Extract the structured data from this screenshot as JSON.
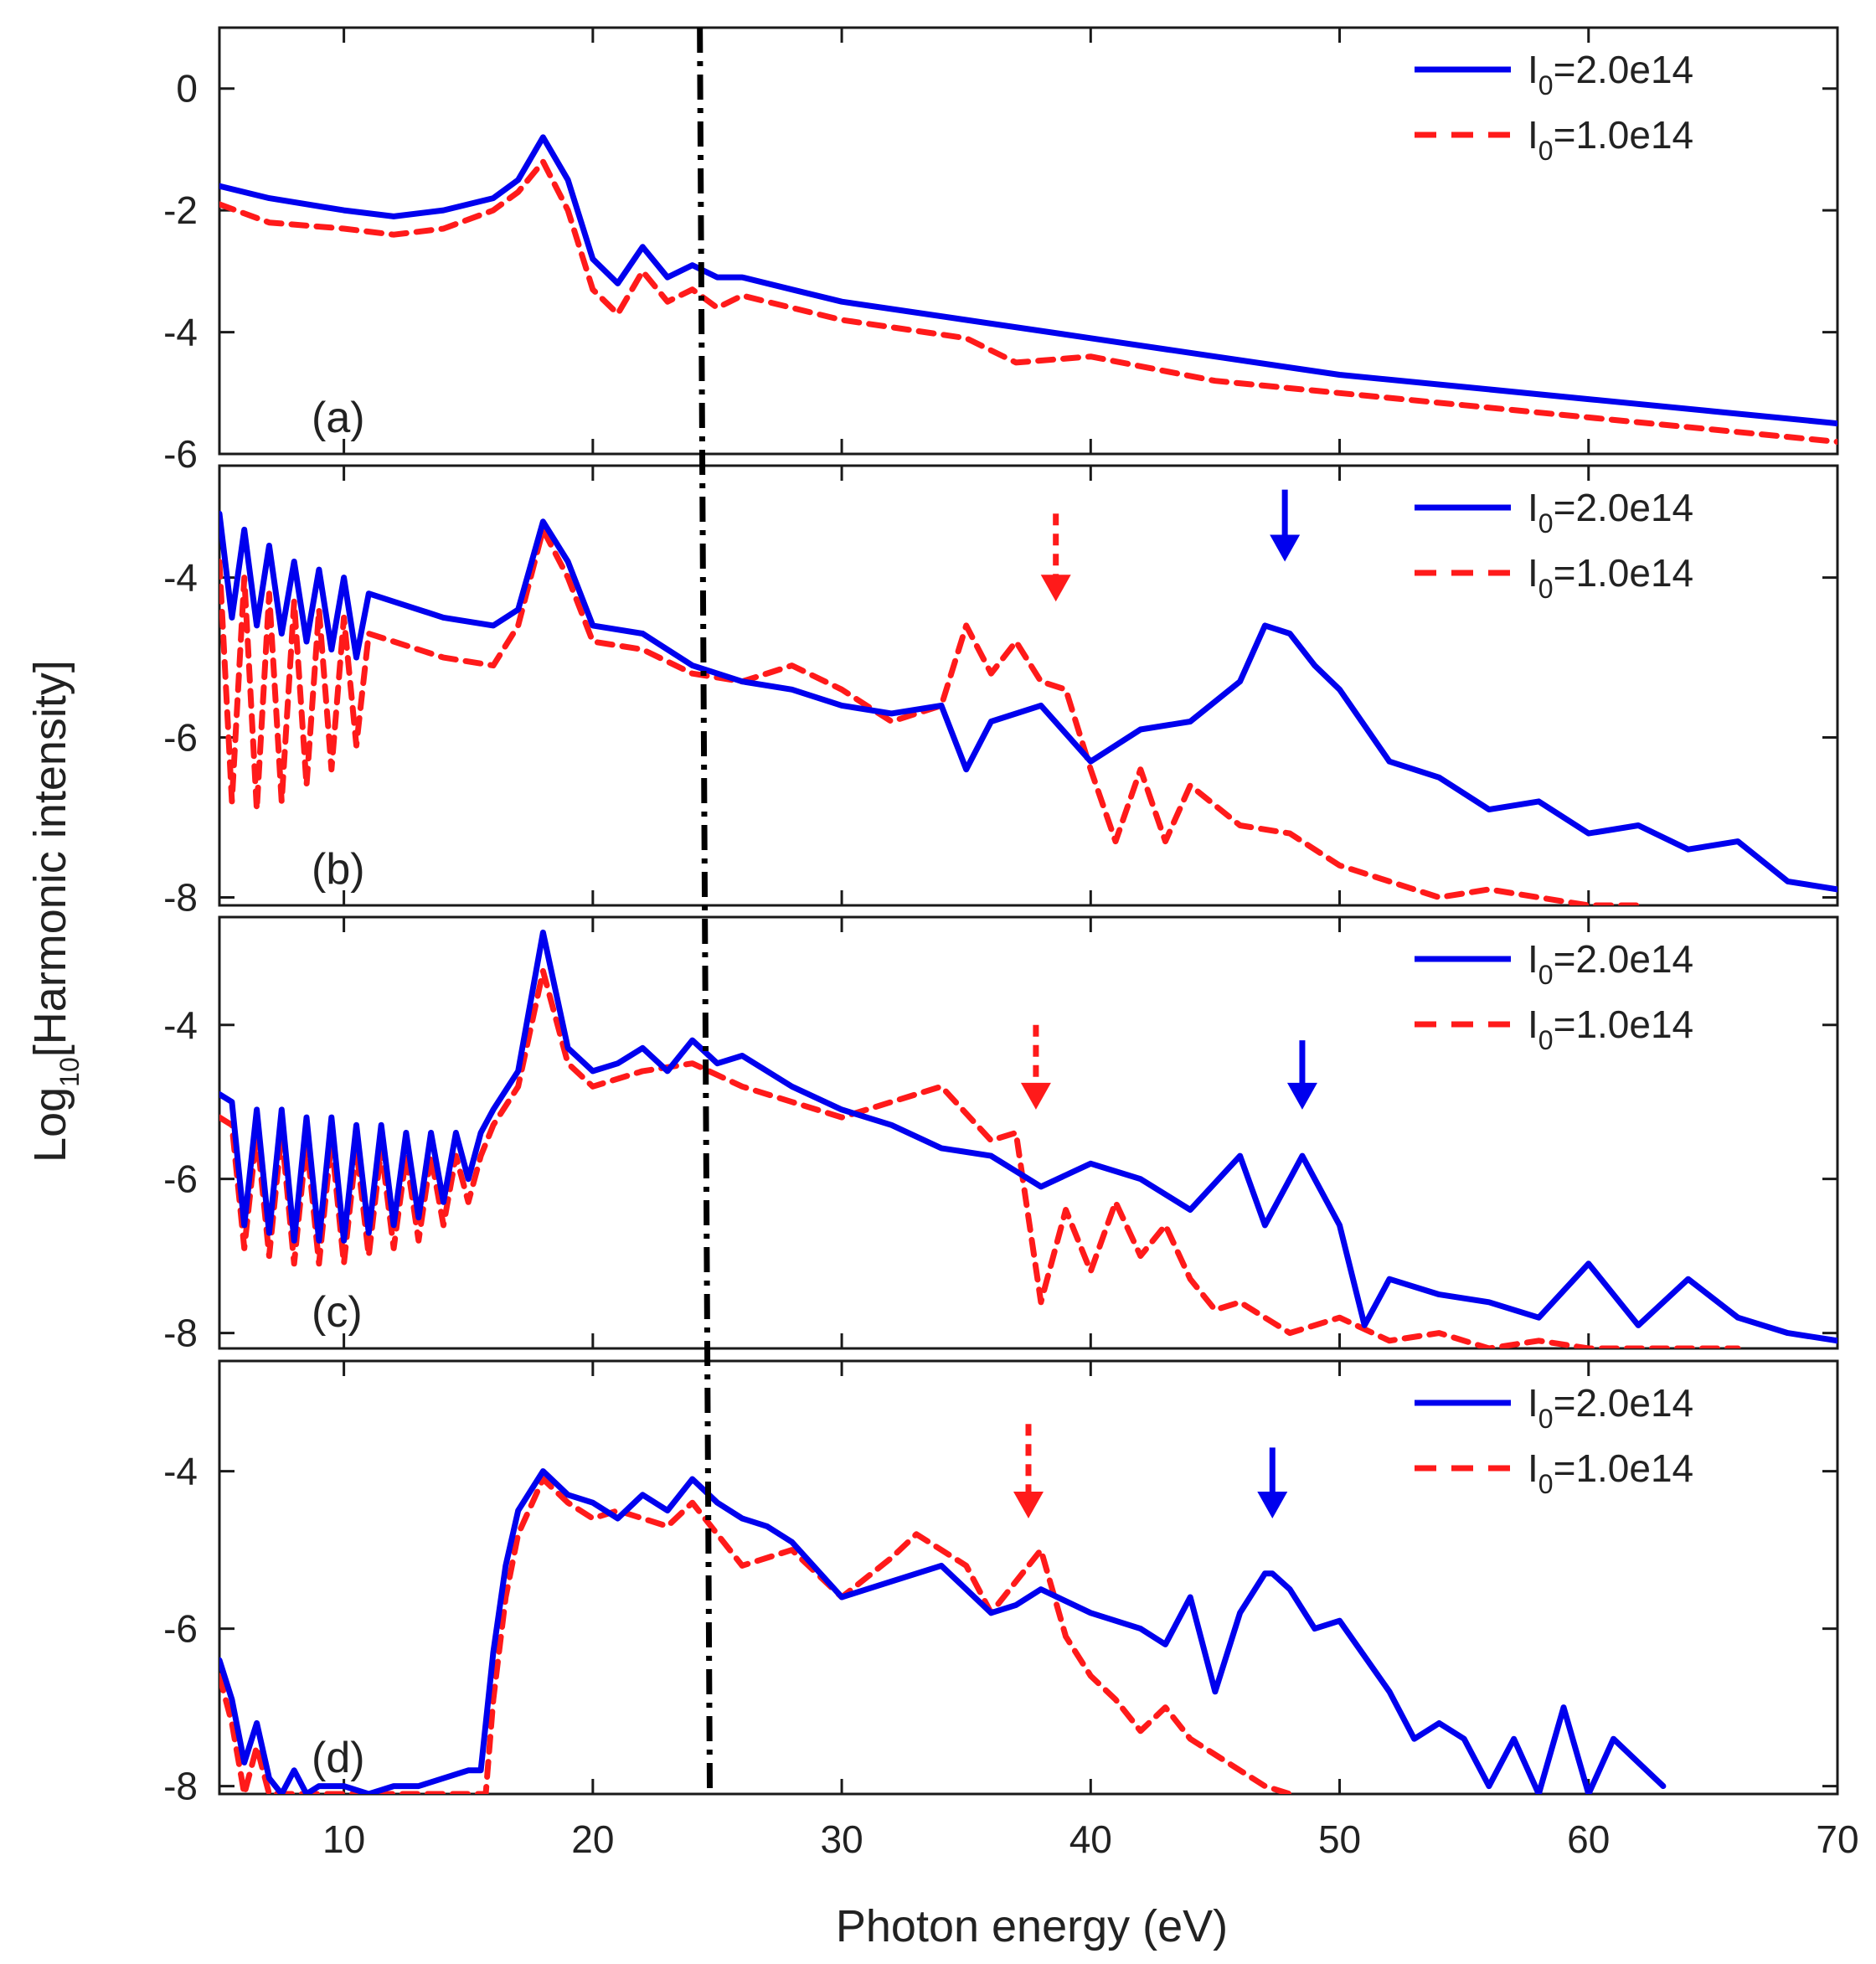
{
  "chart_data": {
    "type": "line",
    "xlabel": "Photon energy (eV)",
    "ylabel_prefix": "Log",
    "ylabel_subscript": "10",
    "ylabel_suffix": "[Harmonic intensity]",
    "xlim": [
      5,
      70
    ],
    "x_ticks": [
      "10",
      "20",
      "30",
      "40",
      "50",
      "60",
      "70"
    ],
    "x_tick_values": [
      10,
      20,
      30,
      40,
      50,
      60,
      70
    ],
    "colors": {
      "blue": "#0000ee",
      "red": "#ff1a1a",
      "vline": "#000000"
    },
    "vertical_line_x": [
      24.3,
      24.7
    ],
    "legend_entries": [
      {
        "name_main": "I",
        "name_sub": "0",
        "name_rest": "=2.0e14",
        "style": "solid",
        "color": "#0000ee"
      },
      {
        "name_main": "I",
        "name_sub": "0",
        "name_rest": "=1.0e14",
        "style": "dashed",
        "color": "#ff1a1a"
      }
    ],
    "panels": [
      {
        "label": "(a)",
        "ylim": [
          -6,
          1
        ],
        "y_ticks": [
          "0",
          "-2",
          "-4",
          "-6"
        ],
        "y_tick_values": [
          0,
          -2,
          -4,
          -6
        ],
        "arrows": [],
        "series": [
          {
            "name": "I0=2.0e14",
            "color": "#0000ee",
            "style": "solid",
            "x": [
              5,
              7,
              10,
              12,
              14,
              16,
              17,
              18,
              19,
              20,
              21,
              22,
              23,
              24,
              25,
              26,
              28,
              30,
              35,
              40,
              45,
              50,
              55,
              60,
              65,
              70
            ],
            "y": [
              -1.6,
              -1.8,
              -2.0,
              -2.1,
              -2.0,
              -1.8,
              -1.5,
              -0.8,
              -1.5,
              -2.8,
              -3.2,
              -2.6,
              -3.1,
              -2.9,
              -3.1,
              -3.1,
              -3.3,
              -3.5,
              -3.8,
              -4.1,
              -4.4,
              -4.7,
              -4.9,
              -5.1,
              -5.3,
              -5.5
            ]
          },
          {
            "name": "I0=1.0e14",
            "color": "#ff1a1a",
            "style": "dashed",
            "x": [
              5,
              7,
              10,
              12,
              14,
              16,
              17,
              18,
              19,
              20,
              21,
              22,
              23,
              24,
              25,
              26,
              28,
              30,
              35,
              37,
              40,
              45,
              50,
              55,
              60,
              65,
              70
            ],
            "y": [
              -1.9,
              -2.2,
              -2.3,
              -2.4,
              -2.3,
              -2.0,
              -1.7,
              -1.2,
              -2.0,
              -3.3,
              -3.7,
              -3.0,
              -3.5,
              -3.3,
              -3.6,
              -3.4,
              -3.6,
              -3.8,
              -4.1,
              -4.5,
              -4.4,
              -4.8,
              -5.0,
              -5.2,
              -5.4,
              -5.6,
              -5.8
            ]
          }
        ]
      },
      {
        "label": "(b)",
        "ylim": [
          -8.1,
          -2.6
        ],
        "y_ticks": [
          "-4",
          "-6",
          "-8"
        ],
        "y_tick_values": [
          -4,
          -6,
          -8
        ],
        "arrows": [
          {
            "x": 47.8,
            "y_top": -2.9,
            "y_bottom": -3.8,
            "color": "#0000ee",
            "style": "solid"
          },
          {
            "x": 38.6,
            "y_top": -3.2,
            "y_bottom": -4.3,
            "color": "#ff1a1a",
            "style": "dashed"
          }
        ],
        "series": [
          {
            "name": "I0=2.0e14",
            "color": "#0000ee",
            "style": "solid",
            "x": [
              5,
              5.5,
              6,
              6.5,
              7,
              7.5,
              8,
              8.5,
              9,
              9.5,
              10,
              10.5,
              11,
              12,
              14,
              16,
              17,
              18,
              19,
              20,
              22,
              24,
              26,
              28,
              30,
              32,
              34,
              35,
              36,
              38,
              40,
              42,
              44,
              46,
              47,
              48,
              49,
              50,
              52,
              54,
              56,
              58,
              60,
              62,
              64,
              66,
              68,
              70
            ],
            "y": [
              -3.2,
              -4.5,
              -3.4,
              -4.6,
              -3.6,
              -4.7,
              -3.8,
              -4.8,
              -3.9,
              -4.9,
              -4.0,
              -5.0,
              -4.2,
              -4.3,
              -4.5,
              -4.6,
              -4.4,
              -3.3,
              -3.8,
              -4.6,
              -4.7,
              -5.1,
              -5.3,
              -5.4,
              -5.6,
              -5.7,
              -5.6,
              -6.4,
              -5.8,
              -5.6,
              -6.3,
              -5.9,
              -5.8,
              -5.3,
              -4.6,
              -4.7,
              -5.1,
              -5.4,
              -6.3,
              -6.5,
              -6.9,
              -6.8,
              -7.2,
              -7.1,
              -7.4,
              -7.3,
              -7.8,
              -7.9
            ]
          },
          {
            "name": "I0=1.0e14",
            "color": "#ff1a1a",
            "style": "dashed",
            "x": [
              5,
              5.5,
              6,
              6.5,
              7,
              7.5,
              8,
              8.5,
              9,
              9.5,
              10,
              10.5,
              11,
              12,
              14,
              16,
              17,
              18,
              19,
              20,
              22,
              24,
              26,
              28,
              30,
              32,
              34,
              35,
              36,
              37,
              38,
              39,
              40,
              41,
              42,
              43,
              44,
              46,
              48,
              50,
              52,
              54,
              56,
              58,
              60,
              62
            ],
            "y": [
              -3.8,
              -6.8,
              -4.0,
              -6.9,
              -4.2,
              -6.8,
              -4.3,
              -6.6,
              -4.4,
              -6.4,
              -4.5,
              -6.1,
              -4.7,
              -4.8,
              -5.0,
              -5.1,
              -4.6,
              -3.4,
              -4.0,
              -4.8,
              -4.9,
              -5.2,
              -5.3,
              -5.1,
              -5.4,
              -5.8,
              -5.6,
              -4.6,
              -5.2,
              -4.8,
              -5.3,
              -5.4,
              -6.4,
              -7.3,
              -6.4,
              -7.3,
              -6.6,
              -7.1,
              -7.2,
              -7.6,
              -7.8,
              -8.0,
              -7.9,
              -8.0,
              -8.1,
              -8.1
            ]
          }
        ]
      },
      {
        "label": "(c)",
        "ylim": [
          -8.2,
          -2.6
        ],
        "y_ticks": [
          "-4",
          "-6",
          "-8"
        ],
        "y_tick_values": [
          -4,
          -6,
          -8
        ],
        "arrows": [
          {
            "x": 48.5,
            "y_top": -4.2,
            "y_bottom": -5.1,
            "color": "#0000ee",
            "style": "solid"
          },
          {
            "x": 37.8,
            "y_top": -4.0,
            "y_bottom": -5.1,
            "color": "#ff1a1a",
            "style": "dashed"
          }
        ],
        "series": [
          {
            "name": "I0=2.0e14",
            "color": "#0000ee",
            "style": "solid",
            "x": [
              5,
              5.5,
              6,
              6.5,
              7,
              7.5,
              8,
              8.5,
              9,
              9.5,
              10,
              10.5,
              11,
              11.5,
              12,
              12.5,
              13,
              13.5,
              14,
              14.5,
              15,
              15.5,
              16,
              17,
              18,
              19,
              20,
              21,
              22,
              23,
              24,
              25,
              26,
              28,
              30,
              32,
              34,
              36,
              38,
              40,
              42,
              44,
              46,
              47,
              48,
              48.5,
              49,
              50,
              51,
              52,
              54,
              56,
              58,
              60,
              62,
              64,
              66,
              68,
              70
            ],
            "y": [
              -4.9,
              -5.0,
              -6.6,
              -5.1,
              -6.7,
              -5.1,
              -6.8,
              -5.2,
              -6.8,
              -5.2,
              -6.8,
              -5.3,
              -6.7,
              -5.3,
              -6.6,
              -5.4,
              -6.5,
              -5.4,
              -6.3,
              -5.4,
              -6.0,
              -5.4,
              -5.1,
              -4.6,
              -2.8,
              -4.3,
              -4.6,
              -4.5,
              -4.3,
              -4.6,
              -4.2,
              -4.5,
              -4.4,
              -4.8,
              -5.1,
              -5.3,
              -5.6,
              -5.7,
              -6.1,
              -5.8,
              -6.0,
              -6.4,
              -5.7,
              -6.6,
              -6.0,
              -5.7,
              -6.0,
              -6.6,
              -7.9,
              -7.3,
              -7.5,
              -7.6,
              -7.8,
              -7.1,
              -7.9,
              -7.3,
              -7.8,
              -8.0,
              -8.1
            ]
          },
          {
            "name": "I0=1.0e14",
            "color": "#ff1a1a",
            "style": "dashed",
            "x": [
              5,
              5.5,
              6,
              6.5,
              7,
              7.5,
              8,
              8.5,
              9,
              9.5,
              10,
              10.5,
              11,
              11.5,
              12,
              12.5,
              13,
              13.5,
              14,
              14.5,
              15,
              15.5,
              16,
              17,
              18,
              19,
              20,
              22,
              24,
              26,
              28,
              30,
              32,
              34,
              36,
              37,
              38,
              39,
              40,
              41,
              42,
              43,
              44,
              45,
              46,
              48,
              50,
              52,
              54,
              56,
              58,
              60,
              62,
              64,
              66
            ],
            "y": [
              -5.2,
              -5.3,
              -6.9,
              -5.4,
              -7.0,
              -5.4,
              -7.1,
              -5.5,
              -7.1,
              -5.5,
              -7.1,
              -5.6,
              -7.0,
              -5.6,
              -6.9,
              -5.7,
              -6.8,
              -5.7,
              -6.6,
              -5.7,
              -6.3,
              -5.7,
              -5.3,
              -4.8,
              -3.3,
              -4.5,
              -4.8,
              -4.6,
              -4.5,
              -4.8,
              -5.0,
              -5.2,
              -5.0,
              -4.8,
              -5.5,
              -5.4,
              -7.6,
              -6.4,
              -7.2,
              -6.3,
              -7.0,
              -6.6,
              -7.3,
              -7.7,
              -7.6,
              -8.0,
              -7.8,
              -8.1,
              -8.0,
              -8.2,
              -8.1,
              -8.2,
              -8.2,
              -8.2,
              -8.2
            ]
          }
        ]
      },
      {
        "label": "(d)",
        "ylim": [
          -8.1,
          -2.6
        ],
        "y_ticks": [
          "-4",
          "-6",
          "-8"
        ],
        "y_tick_values": [
          -4,
          -6,
          -8
        ],
        "arrows": [
          {
            "x": 47.3,
            "y_top": -3.7,
            "y_bottom": -4.6,
            "color": "#0000ee",
            "style": "solid"
          },
          {
            "x": 37.5,
            "y_top": -3.4,
            "y_bottom": -4.6,
            "color": "#ff1a1a",
            "style": "dashed"
          }
        ],
        "series": [
          {
            "name": "I0=2.0e14",
            "color": "#0000ee",
            "style": "solid",
            "x": [
              5,
              5.5,
              6,
              6.5,
              7,
              7.5,
              8,
              8.5,
              9,
              10,
              11,
              12,
              13,
              14,
              15,
              15.5,
              16,
              16.5,
              17,
              18,
              19,
              20,
              21,
              22,
              23,
              24,
              25,
              26,
              27,
              28,
              30,
              32,
              34,
              36,
              37,
              38,
              40,
              42,
              43,
              44,
              45,
              46,
              47,
              47.3,
              48,
              49,
              50,
              52,
              53,
              54,
              55,
              56,
              57,
              58,
              59,
              60,
              61,
              62,
              63
            ],
            "y": [
              -6.4,
              -6.9,
              -7.7,
              -7.2,
              -7.9,
              -8.1,
              -7.8,
              -8.1,
              -8.0,
              -8.0,
              -8.1,
              -8.0,
              -8.0,
              -7.9,
              -7.8,
              -7.8,
              -6.3,
              -5.2,
              -4.5,
              -4.0,
              -4.3,
              -4.4,
              -4.6,
              -4.3,
              -4.5,
              -4.1,
              -4.4,
              -4.6,
              -4.7,
              -4.9,
              -5.6,
              -5.4,
              -5.2,
              -5.8,
              -5.7,
              -5.5,
              -5.8,
              -6.0,
              -6.2,
              -5.6,
              -6.8,
              -5.8,
              -5.3,
              -5.3,
              -5.5,
              -6.0,
              -5.9,
              -6.8,
              -7.4,
              -7.2,
              -7.4,
              -8.0,
              -7.4,
              -8.1,
              -7.0,
              -8.1,
              -7.4,
              -7.7,
              -8.0
            ]
          },
          {
            "name": "I0=1.0e14",
            "color": "#ff1a1a",
            "style": "dashed",
            "x": [
              5,
              5.5,
              6,
              6.5,
              7,
              7.5,
              8,
              9,
              10,
              12,
              14,
              15,
              15.7,
              16,
              16.5,
              17,
              18,
              19,
              20,
              21,
              22,
              23,
              24,
              25,
              26,
              28,
              30,
              32,
              33,
              34,
              35,
              36,
              37,
              38,
              39,
              40,
              41,
              42,
              43,
              44,
              45,
              46,
              47,
              48
            ],
            "y": [
              -6.6,
              -7.2,
              -8.1,
              -7.5,
              -8.1,
              -8.1,
              -8.1,
              -8.1,
              -8.1,
              -8.1,
              -8.1,
              -8.1,
              -8.1,
              -6.9,
              -5.6,
              -4.8,
              -4.1,
              -4.4,
              -4.6,
              -4.5,
              -4.6,
              -4.7,
              -4.4,
              -4.8,
              -5.2,
              -5.0,
              -5.6,
              -5.1,
              -4.8,
              -5.0,
              -5.2,
              -5.8,
              -5.4,
              -5.0,
              -6.1,
              -6.6,
              -6.9,
              -7.3,
              -7.0,
              -7.4,
              -7.6,
              -7.8,
              -8.0,
              -8.1
            ]
          }
        ]
      }
    ]
  }
}
